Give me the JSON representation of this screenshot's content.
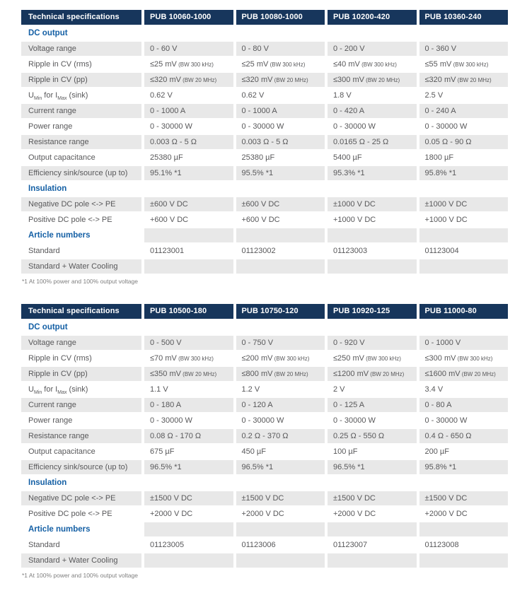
{
  "colors": {
    "header_bg": "#17365c",
    "header_text": "#ffffff",
    "section_text": "#1560a5",
    "row_shade": "#e8e8e8",
    "body_text": "#58585a",
    "footnote_text": "#7f7f7f"
  },
  "tables": [
    {
      "columns": [
        "Technical specifications",
        "PUB 10060-1000",
        "PUB 10080-1000",
        "PUB 10200-420",
        "PUB 10360-240"
      ],
      "rows": [
        {
          "type": "section",
          "label": "DC output"
        },
        {
          "type": "data",
          "label": "Voltage range",
          "values": [
            "0 - 60 V",
            "0 - 80 V",
            "0 - 200 V",
            "0 - 360 V"
          ]
        },
        {
          "type": "data",
          "label": "Ripple in CV (rms)",
          "values": [
            {
              "main": "≤25 mV",
              "note": "(BW 300 kHz)"
            },
            {
              "main": "≤25 mV",
              "note": "(BW 300 kHz)"
            },
            {
              "main": "≤40 mV",
              "note": "(BW 300 kHz)"
            },
            {
              "main": "≤55 mV",
              "note": "(BW 300 kHz)"
            }
          ]
        },
        {
          "type": "data",
          "label": "Ripple in CV (pp)",
          "values": [
            {
              "main": "≤320 mV",
              "note": "(BW 20 MHz)"
            },
            {
              "main": "≤320 mV",
              "note": "(BW 20 MHz)"
            },
            {
              "main": "≤300 mV",
              "note": "(BW 20 MHz)"
            },
            {
              "main": "≤320 mV",
              "note": "(BW 20 MHz)"
            }
          ]
        },
        {
          "type": "data",
          "label": "U_Min for I_Max (sink)",
          "label_parts": [
            {
              "text": "U"
            },
            {
              "text": "Min",
              "sub": true
            },
            {
              "text": " for I"
            },
            {
              "text": "Max",
              "sub": true
            },
            {
              "text": " (sink)"
            }
          ],
          "values": [
            "0.62 V",
            "0.62 V",
            "1.8 V",
            "2.5 V"
          ]
        },
        {
          "type": "data",
          "label": "Current range",
          "values": [
            "0 - 1000 A",
            "0 - 1000 A",
            "0 - 420 A",
            "0 - 240 A"
          ]
        },
        {
          "type": "data",
          "label": "Power range",
          "values": [
            "0 - 30000 W",
            "0 - 30000 W",
            "0 - 30000 W",
            "0 - 30000 W"
          ]
        },
        {
          "type": "data",
          "label": "Resistance range",
          "values": [
            "0.003 Ω - 5 Ω",
            "0.003 Ω - 5 Ω",
            "0.0165 Ω - 25 Ω",
            "0.05 Ω - 90 Ω"
          ]
        },
        {
          "type": "data",
          "label": "Output capacitance",
          "values": [
            "25380 µF",
            "25380 µF",
            "5400 µF",
            "1800 µF"
          ]
        },
        {
          "type": "data",
          "label": "Efficiency sink/source (up to)",
          "values": [
            "95.1% *1",
            "95.5% *1",
            "95.3% *1",
            "95.8% *1"
          ]
        },
        {
          "type": "section",
          "label": "Insulation"
        },
        {
          "type": "data",
          "label": "Negative DC pole <-> PE",
          "values": [
            "±600 V DC",
            "±600 V DC",
            "±1000 V DC",
            "±1000 V DC"
          ]
        },
        {
          "type": "data",
          "label": "Positive DC pole <-> PE",
          "values": [
            "+600 V DC",
            "+600 V DC",
            "+1000 V DC",
            "+1000 V DC"
          ]
        },
        {
          "type": "section",
          "label": "Article numbers"
        },
        {
          "type": "data",
          "label": "Standard",
          "values": [
            "01123001",
            "01123002",
            "01123003",
            "01123004"
          ]
        },
        {
          "type": "data",
          "label": "Standard + Water Cooling",
          "values": [
            "",
            "",
            "",
            ""
          ]
        }
      ],
      "footnote": "*1 At 100% power and 100% output voltage"
    },
    {
      "columns": [
        "Technical specifications",
        "PUB 10500-180",
        "PUB 10750-120",
        "PUB 10920-125",
        "PUB 11000-80"
      ],
      "rows": [
        {
          "type": "section",
          "label": "DC output"
        },
        {
          "type": "data",
          "label": "Voltage range",
          "values": [
            "0 - 500 V",
            "0 - 750 V",
            "0 - 920 V",
            "0 - 1000 V"
          ]
        },
        {
          "type": "data",
          "label": "Ripple in CV (rms)",
          "values": [
            {
              "main": "≤70 mV",
              "note": "(BW 300 kHz)"
            },
            {
              "main": "≤200 mV",
              "note": "(BW 300 kHz)"
            },
            {
              "main": "≤250 mV",
              "note": "(BW 300 kHz)"
            },
            {
              "main": "≤300 mV",
              "note": "(BW 300 kHz)"
            }
          ]
        },
        {
          "type": "data",
          "label": "Ripple in CV (pp)",
          "values": [
            {
              "main": "≤350 mV",
              "note": "(BW 20 MHz)"
            },
            {
              "main": "≤800 mV",
              "note": "(BW 20 MHz)"
            },
            {
              "main": "≤1200 mV",
              "note": "(BW 20 MHz)"
            },
            {
              "main": "≤1600 mV",
              "note": "(BW 20 MHz)"
            }
          ]
        },
        {
          "type": "data",
          "label": "U_Min for I_Max (sink)",
          "label_parts": [
            {
              "text": "U"
            },
            {
              "text": "Min",
              "sub": true
            },
            {
              "text": " for I"
            },
            {
              "text": "Max",
              "sub": true
            },
            {
              "text": " (sink)"
            }
          ],
          "values": [
            "1.1 V",
            "1.2 V",
            "2 V",
            "3.4 V"
          ]
        },
        {
          "type": "data",
          "label": "Current range",
          "values": [
            "0 - 180 A",
            "0 - 120 A",
            "0 - 125 A",
            "0 - 80 A"
          ]
        },
        {
          "type": "data",
          "label": "Power range",
          "values": [
            "0 - 30000 W",
            "0 - 30000 W",
            "0 - 30000 W",
            "0 - 30000 W"
          ]
        },
        {
          "type": "data",
          "label": "Resistance range",
          "values": [
            "0.08 Ω - 170 Ω",
            "0.2 Ω - 370 Ω",
            "0.25 Ω - 550 Ω",
            "0.4 Ω - 650 Ω"
          ]
        },
        {
          "type": "data",
          "label": "Output capacitance",
          "values": [
            "675 µF",
            "450 µF",
            "100 µF",
            "200 µF"
          ]
        },
        {
          "type": "data",
          "label": "Efficiency sink/source (up to)",
          "values": [
            "96.5% *1",
            "96.5% *1",
            "96.5% *1",
            "95.8% *1"
          ]
        },
        {
          "type": "section",
          "label": "Insulation"
        },
        {
          "type": "data",
          "label": "Negative DC pole <-> PE",
          "values": [
            "±1500 V DC",
            "±1500 V DC",
            "±1500 V DC",
            "±1500 V DC"
          ]
        },
        {
          "type": "data",
          "label": "Positive DC pole <-> PE",
          "values": [
            "+2000 V DC",
            "+2000 V DC",
            "+2000 V DC",
            "+2000 V DC"
          ]
        },
        {
          "type": "section",
          "label": "Article numbers"
        },
        {
          "type": "data",
          "label": "Standard",
          "values": [
            "01123005",
            "01123006",
            "01123007",
            "01123008"
          ]
        },
        {
          "type": "data",
          "label": "Standard + Water Cooling",
          "values": [
            "",
            "",
            "",
            ""
          ]
        }
      ],
      "footnote": "*1 At 100% power and 100% output voltage"
    }
  ]
}
